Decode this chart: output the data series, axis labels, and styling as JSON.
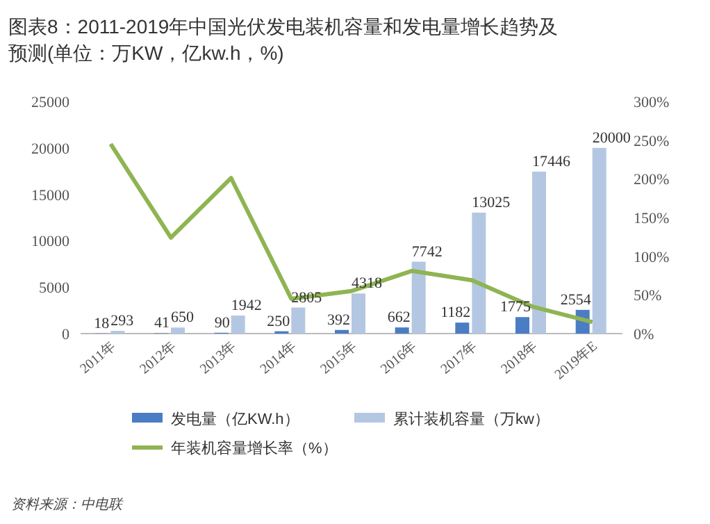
{
  "chart_data": {
    "type": "bar",
    "title": "图表8：2011-2019年中国光伏发电装机容量和发电量增长趋势及预测(单位：万KW，亿kw.h，%)",
    "categories": [
      "2011年",
      "2012年",
      "2013年",
      "2014年",
      "2015年",
      "2016年",
      "2017年",
      "2018年",
      "2019年E"
    ],
    "series": [
      {
        "name": "发电量（亿KW.h）",
        "color": "#4a7dc4",
        "values": [
          18,
          41,
          90,
          250,
          392,
          662,
          1182,
          1775,
          2554
        ],
        "value_labels": [
          "18",
          "41",
          "90",
          "250",
          "392",
          "662",
          "1182",
          "1775",
          "2554"
        ]
      },
      {
        "name": "累计装机容量（万kw）",
        "color": "#b4c7e2",
        "values": [
          293,
          650,
          1942,
          2805,
          4318,
          7742,
          13025,
          17446,
          20000
        ],
        "value_labels": [
          "293",
          "650",
          "1942",
          "2805",
          "4318",
          "7742",
          "13025",
          "17446",
          "20000"
        ]
      },
      {
        "name": "年装机容量增长率（%）",
        "color": "#8fb452",
        "type": "line",
        "axis": "y2",
        "values": [
          245,
          124,
          201,
          45,
          55,
          81,
          69,
          35,
          15
        ]
      }
    ],
    "ylim": [
      0,
      25000
    ],
    "yticks": [
      0,
      5000,
      10000,
      15000,
      20000,
      25000
    ],
    "y2lim": [
      0,
      300
    ],
    "y2ticks": [
      {
        "value": 0,
        "label": "0%"
      },
      {
        "value": 50,
        "label": "50%"
      },
      {
        "value": 100,
        "label": "100%"
      },
      {
        "value": 150,
        "label": "150%"
      },
      {
        "value": 200,
        "label": "200%"
      },
      {
        "value": 250,
        "label": "250%"
      },
      {
        "value": 300,
        "label": "300%"
      }
    ],
    "legend": "bottom",
    "grid": false,
    "annotations": [
      "资料来源：中电联"
    ]
  }
}
